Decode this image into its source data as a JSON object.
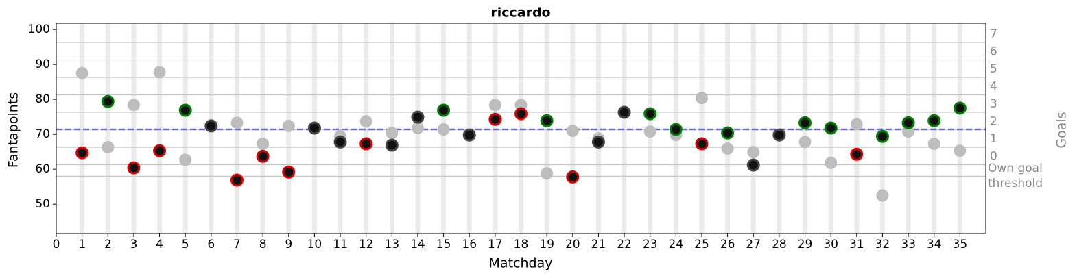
{
  "chart_data": {
    "type": "scatter",
    "title": "riccardo",
    "xlabel": "Matchday",
    "ylabel": "Fantapoints",
    "y2label": "Goals",
    "x": [
      1,
      2,
      3,
      4,
      5,
      6,
      7,
      8,
      9,
      10,
      11,
      12,
      13,
      14,
      15,
      16,
      17,
      18,
      19,
      20,
      21,
      22,
      23,
      24,
      25,
      26,
      27,
      28,
      29,
      30,
      31,
      32,
      33,
      34,
      35
    ],
    "series": [
      {
        "color": "#bdbdbd",
        "values": [
          87.5,
          66.3,
          78.4,
          87.8,
          62.7,
          72.4,
          73.3,
          67.3,
          72.4,
          71.8,
          69.4,
          73.7,
          70.4,
          71.8,
          71.4,
          69.8,
          78.4,
          78.4,
          58.8,
          71.0,
          68.8,
          76.3,
          70.8,
          69.8,
          80.4,
          65.9,
          64.9,
          69.8,
          67.8,
          61.8,
          72.9,
          52.5,
          70.8,
          67.3,
          65.3
        ]
      },
      {
        "color": "#111111",
        "values": [
          64.7,
          79.4,
          60.4,
          65.3,
          76.9,
          72.4,
          56.9,
          63.7,
          59.2,
          71.8,
          67.8,
          67.3,
          66.9,
          74.9,
          76.9,
          69.8,
          74.3,
          75.9,
          73.9,
          57.8,
          67.8,
          76.3,
          75.9,
          71.4,
          67.3,
          70.4,
          61.2,
          69.8,
          73.3,
          71.8,
          64.3,
          69.4,
          73.3,
          73.9,
          77.5
        ],
        "edge_colors": [
          "#e00000",
          "#008000",
          "#e00000",
          "#e00000",
          "#008000",
          "#444444",
          "#e00000",
          "#e00000",
          "#e00000",
          "#444444",
          "#444444",
          "#e00000",
          "#444444",
          "#444444",
          "#008000",
          "#444444",
          "#e00000",
          "#e00000",
          "#008000",
          "#e00000",
          "#444444",
          "#444444",
          "#008000",
          "#008000",
          "#e00000",
          "#008000",
          "#444444",
          "#444444",
          "#008000",
          "#008000",
          "#e00000",
          "#008000",
          "#008000",
          "#008000",
          "#008000"
        ]
      }
    ],
    "reference_line": 71.4,
    "reference_color": "#5a5ae0",
    "xlim": [
      0,
      36
    ],
    "xticks": [
      0,
      1,
      2,
      3,
      4,
      5,
      6,
      7,
      8,
      9,
      10,
      11,
      12,
      13,
      14,
      15,
      16,
      17,
      18,
      19,
      20,
      21,
      22,
      23,
      24,
      25,
      26,
      27,
      28,
      29,
      30,
      31,
      32,
      33,
      34,
      35
    ],
    "ylim": [
      41.6,
      101.8
    ],
    "yticks": [
      50,
      60,
      70,
      80,
      90,
      100
    ],
    "y2lim": [
      -3.94,
      8.1
    ],
    "y2ticks": [
      {
        "value": -0.66,
        "label": "Own goal threshold"
      },
      0,
      1,
      2,
      3,
      4,
      5,
      6,
      7
    ],
    "y2grid": true
  }
}
